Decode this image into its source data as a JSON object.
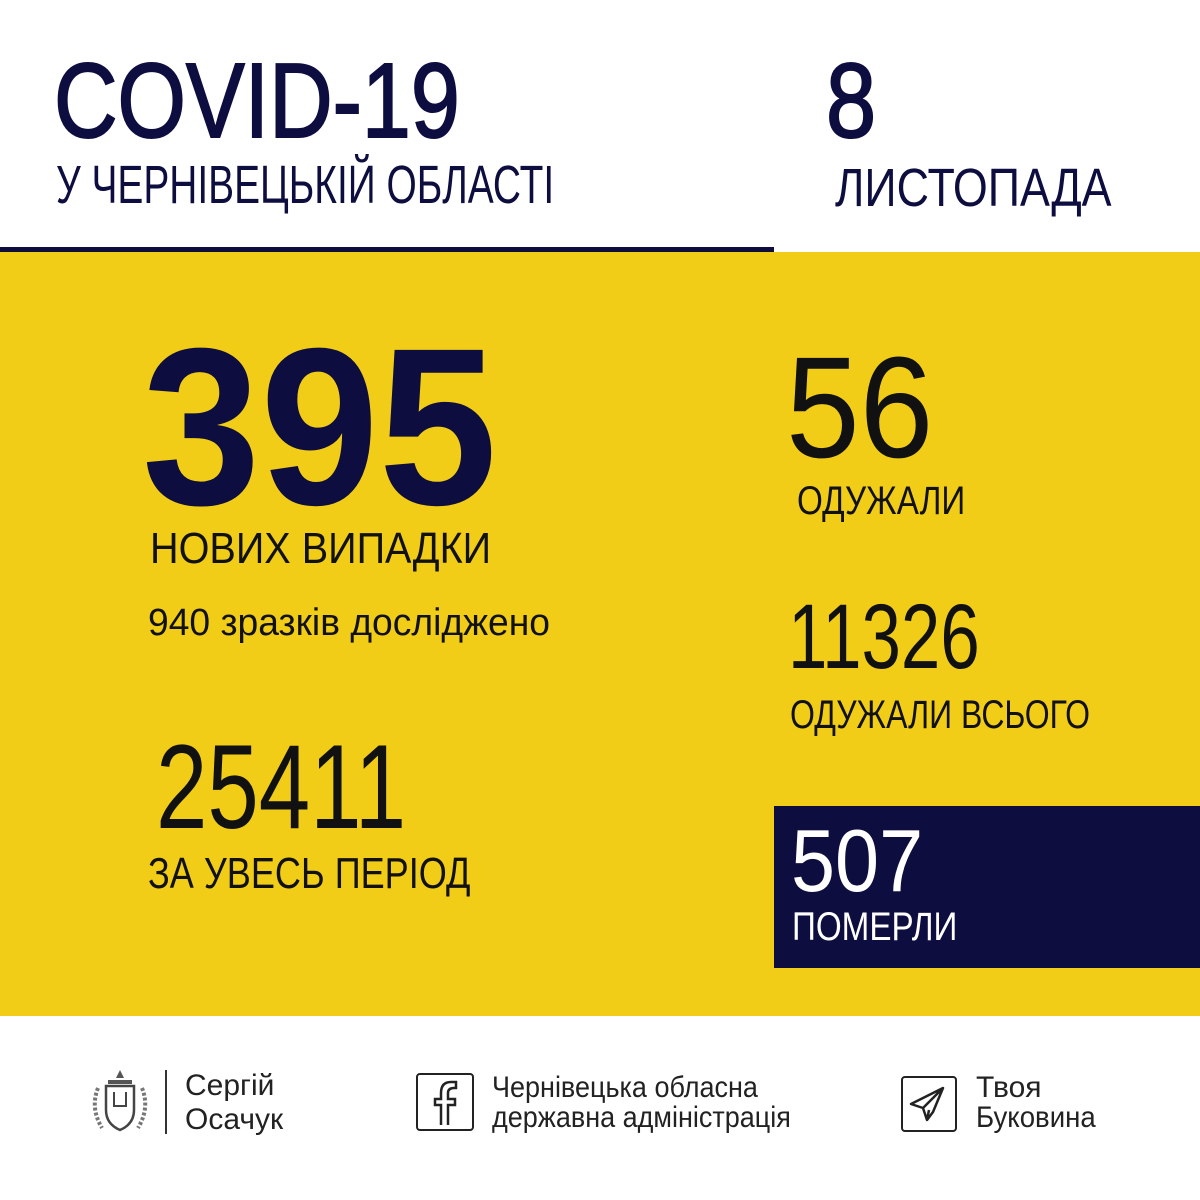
{
  "header": {
    "title": "COVID-19",
    "subtitle": "У ЧЕРНІВЕЦЬКІЙ ОБЛАСТІ",
    "date_day": "8",
    "date_month": "ЛИСТОПАДА"
  },
  "stats": {
    "new_cases": {
      "value": "395",
      "label": "НОВИХ ВИПАДКИ"
    },
    "samples": "940 зразків досліджено",
    "total": {
      "value": "25411",
      "label": "ЗА УВЕСЬ ПЕРІОД"
    },
    "recovered": {
      "value": "56",
      "label": "ОДУЖАЛИ"
    },
    "recovered_total": {
      "value": "11326",
      "label": "ОДУЖАЛИ ВСЬОГО"
    },
    "deaths": {
      "value": "507",
      "label": "ПОМЕРЛИ"
    }
  },
  "footer": {
    "person": {
      "line1": "Сергій",
      "line2": "Осачук",
      "icon": "coat-of-arms"
    },
    "facebook": {
      "line1": "Чернівецька обласна",
      "line2": "державна адміністрація",
      "icon": "facebook-icon"
    },
    "telegram": {
      "line1": "Твоя",
      "line2": "Буковина",
      "icon": "telegram-icon"
    }
  },
  "colors": {
    "yellow": "#f2cd17",
    "navy": "#0d0d40"
  }
}
